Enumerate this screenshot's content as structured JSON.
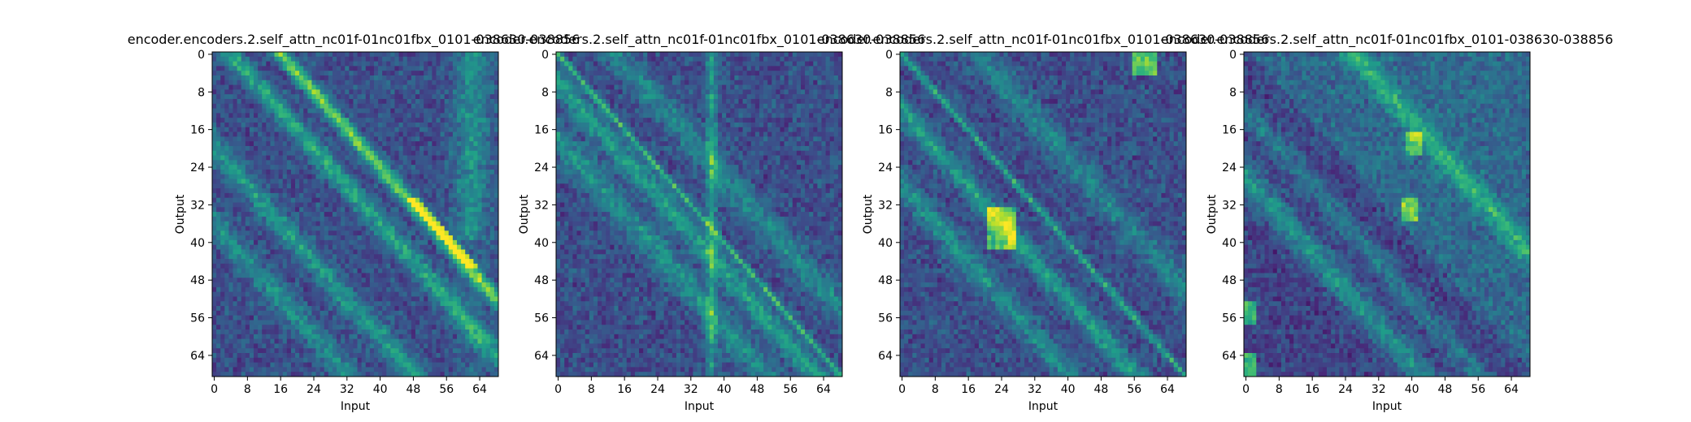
{
  "chart_data": [
    {
      "type": "heatmap",
      "title": "encoder.encoders.2.self_attn_nc01f-01nc01fbx_0101-038630-038856",
      "xlabel": "Input",
      "ylabel": "Output",
      "x_ticks": [
        "0",
        "8",
        "16",
        "24",
        "32",
        "40",
        "48",
        "56",
        "64"
      ],
      "y_ticks": [
        "0",
        "8",
        "16",
        "24",
        "32",
        "40",
        "48",
        "56",
        "64"
      ],
      "size": [
        69,
        69
      ],
      "colormap": "viridis",
      "pattern_seed": 1
    },
    {
      "type": "heatmap",
      "title": "encoder.encoders.2.self_attn_nc01f-01nc01fbx_0101-038630-038856",
      "xlabel": "Input",
      "ylabel": "Output",
      "x_ticks": [
        "0",
        "8",
        "16",
        "24",
        "32",
        "40",
        "48",
        "56",
        "64"
      ],
      "y_ticks": [
        "0",
        "8",
        "16",
        "24",
        "32",
        "40",
        "48",
        "56",
        "64"
      ],
      "size": [
        69,
        69
      ],
      "colormap": "viridis",
      "pattern_seed": 2
    },
    {
      "type": "heatmap",
      "title": "encoder.encoders.2.self_attn_nc01f-01nc01fbx_0101-038630-038856",
      "xlabel": "Input",
      "ylabel": "Output",
      "x_ticks": [
        "0",
        "8",
        "16",
        "24",
        "32",
        "40",
        "48",
        "56",
        "64"
      ],
      "y_ticks": [
        "0",
        "8",
        "16",
        "24",
        "32",
        "40",
        "48",
        "56",
        "64"
      ],
      "size": [
        69,
        69
      ],
      "colormap": "viridis",
      "pattern_seed": 3
    },
    {
      "type": "heatmap",
      "title": "encoder.encoders.2.self_attn_nc01f-01nc01fbx_0101-038630-038856",
      "xlabel": "Input",
      "ylabel": "Output",
      "x_ticks": [
        "0",
        "8",
        "16",
        "24",
        "32",
        "40",
        "48",
        "56",
        "64"
      ],
      "y_ticks": [
        "0",
        "8",
        "16",
        "24",
        "32",
        "40",
        "48",
        "56",
        "64"
      ],
      "size": [
        69,
        69
      ],
      "colormap": "viridis",
      "pattern_seed": 4
    }
  ]
}
